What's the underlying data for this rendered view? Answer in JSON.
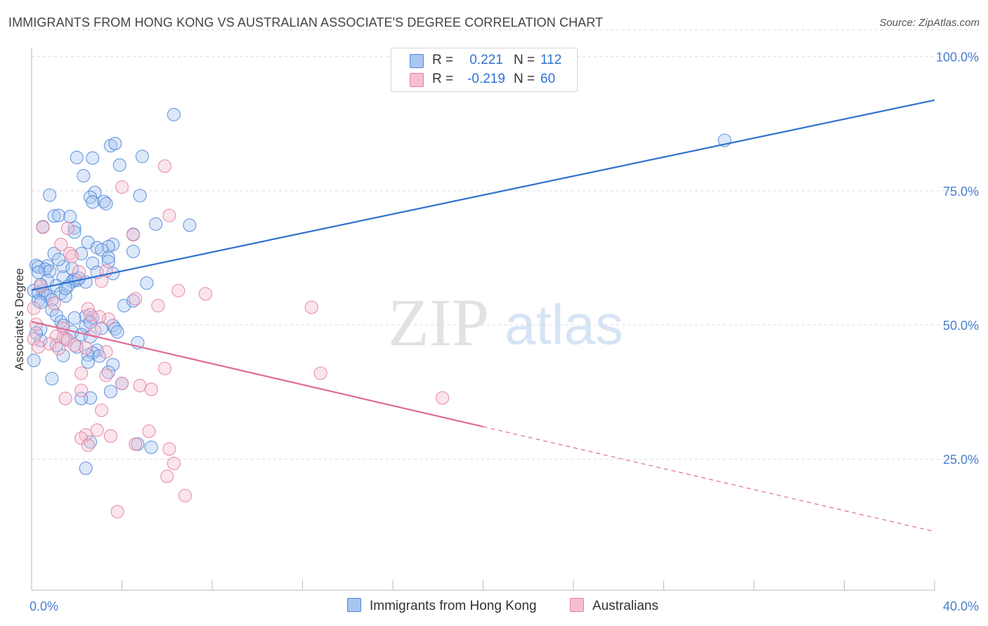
{
  "title": "IMMIGRANTS FROM HONG KONG VS AUSTRALIAN ASSOCIATE'S DEGREE CORRELATION CHART",
  "source": "Source: ZipAtlas.com",
  "colors": {
    "blue": "#4f87d8",
    "blue_fill": "#a8c6f0",
    "blue_line": "#2f72cf",
    "pink": "#e47fa1",
    "pink_fill": "#f6bfd0",
    "pink_line": "#e06b95",
    "tick_label": "#4a7fd0"
  },
  "legend": {
    "rows": [
      {
        "r_label": "R =",
        "r_value": "0.221",
        "n_label": "N =",
        "n_value": "112"
      },
      {
        "r_label": "R =",
        "r_value": "-0.219",
        "n_label": "N =",
        "n_value": "60"
      }
    ]
  },
  "bottom_legend": [
    "Immigrants from Hong Kong",
    "Australians"
  ],
  "watermark": {
    "zip": "ZIP",
    "atlas": "atlas"
  },
  "chart_data": {
    "type": "scatter",
    "xlabel": "",
    "ylabel": "Associate's Degree",
    "xlim": [
      0,
      40
    ],
    "ylim": [
      0,
      105
    ],
    "x_tick_labels": [
      "0.0%",
      "40.0%"
    ],
    "y_ticks": [
      25,
      50,
      75,
      100
    ],
    "y_tick_labels": [
      "25.0%",
      "50.0%",
      "75.0%",
      "100.0%"
    ],
    "grid": "horizontal dashed",
    "series": [
      {
        "name": "Immigrants from Hong Kong",
        "r": 0.221,
        "n": 112,
        "trend": {
          "x0": 0,
          "y0": 56.5,
          "x1": 40,
          "y1": 91.9,
          "dashed_from": null
        },
        "points": [
          [
            6.3,
            89.2
          ],
          [
            2.0,
            81.2
          ],
          [
            2.7,
            81.1
          ],
          [
            3.5,
            83.4
          ],
          [
            3.7,
            83.8
          ],
          [
            4.9,
            81.4
          ],
          [
            3.9,
            79.8
          ],
          [
            2.3,
            77.8
          ],
          [
            0.8,
            74.2
          ],
          [
            2.8,
            74.7
          ],
          [
            4.8,
            74.1
          ],
          [
            2.6,
            73.8
          ],
          [
            3.2,
            73.0
          ],
          [
            3.3,
            72.6
          ],
          [
            2.7,
            72.9
          ],
          [
            1.0,
            70.3
          ],
          [
            1.2,
            70.4
          ],
          [
            1.7,
            70.2
          ],
          [
            5.5,
            68.8
          ],
          [
            7.0,
            68.6
          ],
          [
            0.5,
            68.3
          ],
          [
            1.9,
            68.1
          ],
          [
            1.9,
            67.3
          ],
          [
            4.5,
            66.9
          ],
          [
            2.5,
            65.4
          ],
          [
            3.6,
            65.0
          ],
          [
            3.4,
            64.6
          ],
          [
            2.9,
            64.4
          ],
          [
            3.1,
            64.0
          ],
          [
            4.5,
            63.7
          ],
          [
            1.0,
            63.3
          ],
          [
            2.2,
            63.3
          ],
          [
            3.4,
            62.6
          ],
          [
            3.4,
            61.8
          ],
          [
            2.7,
            61.5
          ],
          [
            0.2,
            61.1
          ],
          [
            0.7,
            61.0
          ],
          [
            0.3,
            60.8
          ],
          [
            0.6,
            60.4
          ],
          [
            1.4,
            60.9
          ],
          [
            1.8,
            60.5
          ],
          [
            0.8,
            60.0
          ],
          [
            0.3,
            59.8
          ],
          [
            3.6,
            59.6
          ],
          [
            1.4,
            58.9
          ],
          [
            1.9,
            58.5
          ],
          [
            0.7,
            58.3
          ],
          [
            1.8,
            58.1
          ],
          [
            2.0,
            58.3
          ],
          [
            2.4,
            58.0
          ],
          [
            5.1,
            57.8
          ],
          [
            1.1,
            57.3
          ],
          [
            1.6,
            57.2
          ],
          [
            0.5,
            56.4
          ],
          [
            0.1,
            56.4
          ],
          [
            0.3,
            56.0
          ],
          [
            0.6,
            55.8
          ],
          [
            1.3,
            55.9
          ],
          [
            1.5,
            55.4
          ],
          [
            0.7,
            55.4
          ],
          [
            0.9,
            54.7
          ],
          [
            0.3,
            54.5
          ],
          [
            0.4,
            54.2
          ],
          [
            4.1,
            53.6
          ],
          [
            0.9,
            52.8
          ],
          [
            1.1,
            51.8
          ],
          [
            2.4,
            51.6
          ],
          [
            2.7,
            51.4
          ],
          [
            1.9,
            51.3
          ],
          [
            1.3,
            50.6
          ],
          [
            1.4,
            49.9
          ],
          [
            3.6,
            49.9
          ],
          [
            2.4,
            49.8
          ],
          [
            3.1,
            49.4
          ],
          [
            3.7,
            49.3
          ],
          [
            0.4,
            49.2
          ],
          [
            1.8,
            48.7
          ],
          [
            2.2,
            48.2
          ],
          [
            1.5,
            47.4
          ],
          [
            2.6,
            47.8
          ],
          [
            4.7,
            46.7
          ],
          [
            2.0,
            45.9
          ],
          [
            2.9,
            45.3
          ],
          [
            2.7,
            44.8
          ],
          [
            2.5,
            44.4
          ],
          [
            3.0,
            44.2
          ],
          [
            1.4,
            44.3
          ],
          [
            2.5,
            43.1
          ],
          [
            3.6,
            42.6
          ],
          [
            3.4,
            41.2
          ],
          [
            0.1,
            43.4
          ],
          [
            0.9,
            40.0
          ],
          [
            4.0,
            39.1
          ],
          [
            3.5,
            37.6
          ],
          [
            2.6,
            36.4
          ],
          [
            2.2,
            36.3
          ],
          [
            2.6,
            28.2
          ],
          [
            5.3,
            27.2
          ],
          [
            4.7,
            27.8
          ],
          [
            2.4,
            23.3
          ],
          [
            30.7,
            84.4
          ],
          [
            0.4,
            47.1
          ],
          [
            1.2,
            62.2
          ],
          [
            2.1,
            58.7
          ],
          [
            1.5,
            56.8
          ],
          [
            0.4,
            57.5
          ],
          [
            3.8,
            48.7
          ],
          [
            2.6,
            50.5
          ],
          [
            1.1,
            46.2
          ],
          [
            0.2,
            48.5
          ],
          [
            4.5,
            54.5
          ],
          [
            2.9,
            59.8
          ]
        ]
      },
      {
        "name": "Australians",
        "r": -0.219,
        "n": 60,
        "trend": {
          "x0": 0,
          "y0": 50.6,
          "x1": 40,
          "y1": 11.5,
          "dashed_from": 20
        },
        "points": [
          [
            5.9,
            79.6
          ],
          [
            4.0,
            75.7
          ],
          [
            6.1,
            70.4
          ],
          [
            0.5,
            68.2
          ],
          [
            1.6,
            68.0
          ],
          [
            4.5,
            66.8
          ],
          [
            1.3,
            65.0
          ],
          [
            1.7,
            63.3
          ],
          [
            1.8,
            62.8
          ],
          [
            3.3,
            60.1
          ],
          [
            2.1,
            59.9
          ],
          [
            3.1,
            58.2
          ],
          [
            6.5,
            56.4
          ],
          [
            7.7,
            55.8
          ],
          [
            4.6,
            54.9
          ],
          [
            1.0,
            54.0
          ],
          [
            5.6,
            53.6
          ],
          [
            12.4,
            53.3
          ],
          [
            2.5,
            53.0
          ],
          [
            0.1,
            53.1
          ],
          [
            2.6,
            51.9
          ],
          [
            3.4,
            51.1
          ],
          [
            1.4,
            49.4
          ],
          [
            2.8,
            48.9
          ],
          [
            1.1,
            47.9
          ],
          [
            1.4,
            47.6
          ],
          [
            1.6,
            47.2
          ],
          [
            0.8,
            46.5
          ],
          [
            0.1,
            47.4
          ],
          [
            0.3,
            45.9
          ],
          [
            1.2,
            45.6
          ],
          [
            1.9,
            46.2
          ],
          [
            2.4,
            45.7
          ],
          [
            3.3,
            45.0
          ],
          [
            5.9,
            41.9
          ],
          [
            2.2,
            41.0
          ],
          [
            12.8,
            41.0
          ],
          [
            3.3,
            40.6
          ],
          [
            4.0,
            39.1
          ],
          [
            4.8,
            38.7
          ],
          [
            5.3,
            38.0
          ],
          [
            2.2,
            37.8
          ],
          [
            18.2,
            36.4
          ],
          [
            1.5,
            36.3
          ],
          [
            3.1,
            34.1
          ],
          [
            2.9,
            30.4
          ],
          [
            2.4,
            29.5
          ],
          [
            5.2,
            30.2
          ],
          [
            3.5,
            29.3
          ],
          [
            2.2,
            28.9
          ],
          [
            2.5,
            27.6
          ],
          [
            4.6,
            27.8
          ],
          [
            6.1,
            26.9
          ],
          [
            6.3,
            24.2
          ],
          [
            6.0,
            21.8
          ],
          [
            6.8,
            18.2
          ],
          [
            3.8,
            15.2
          ],
          [
            0.4,
            57.2
          ],
          [
            0.2,
            50.1
          ],
          [
            3.0,
            51.5
          ]
        ]
      }
    ]
  }
}
